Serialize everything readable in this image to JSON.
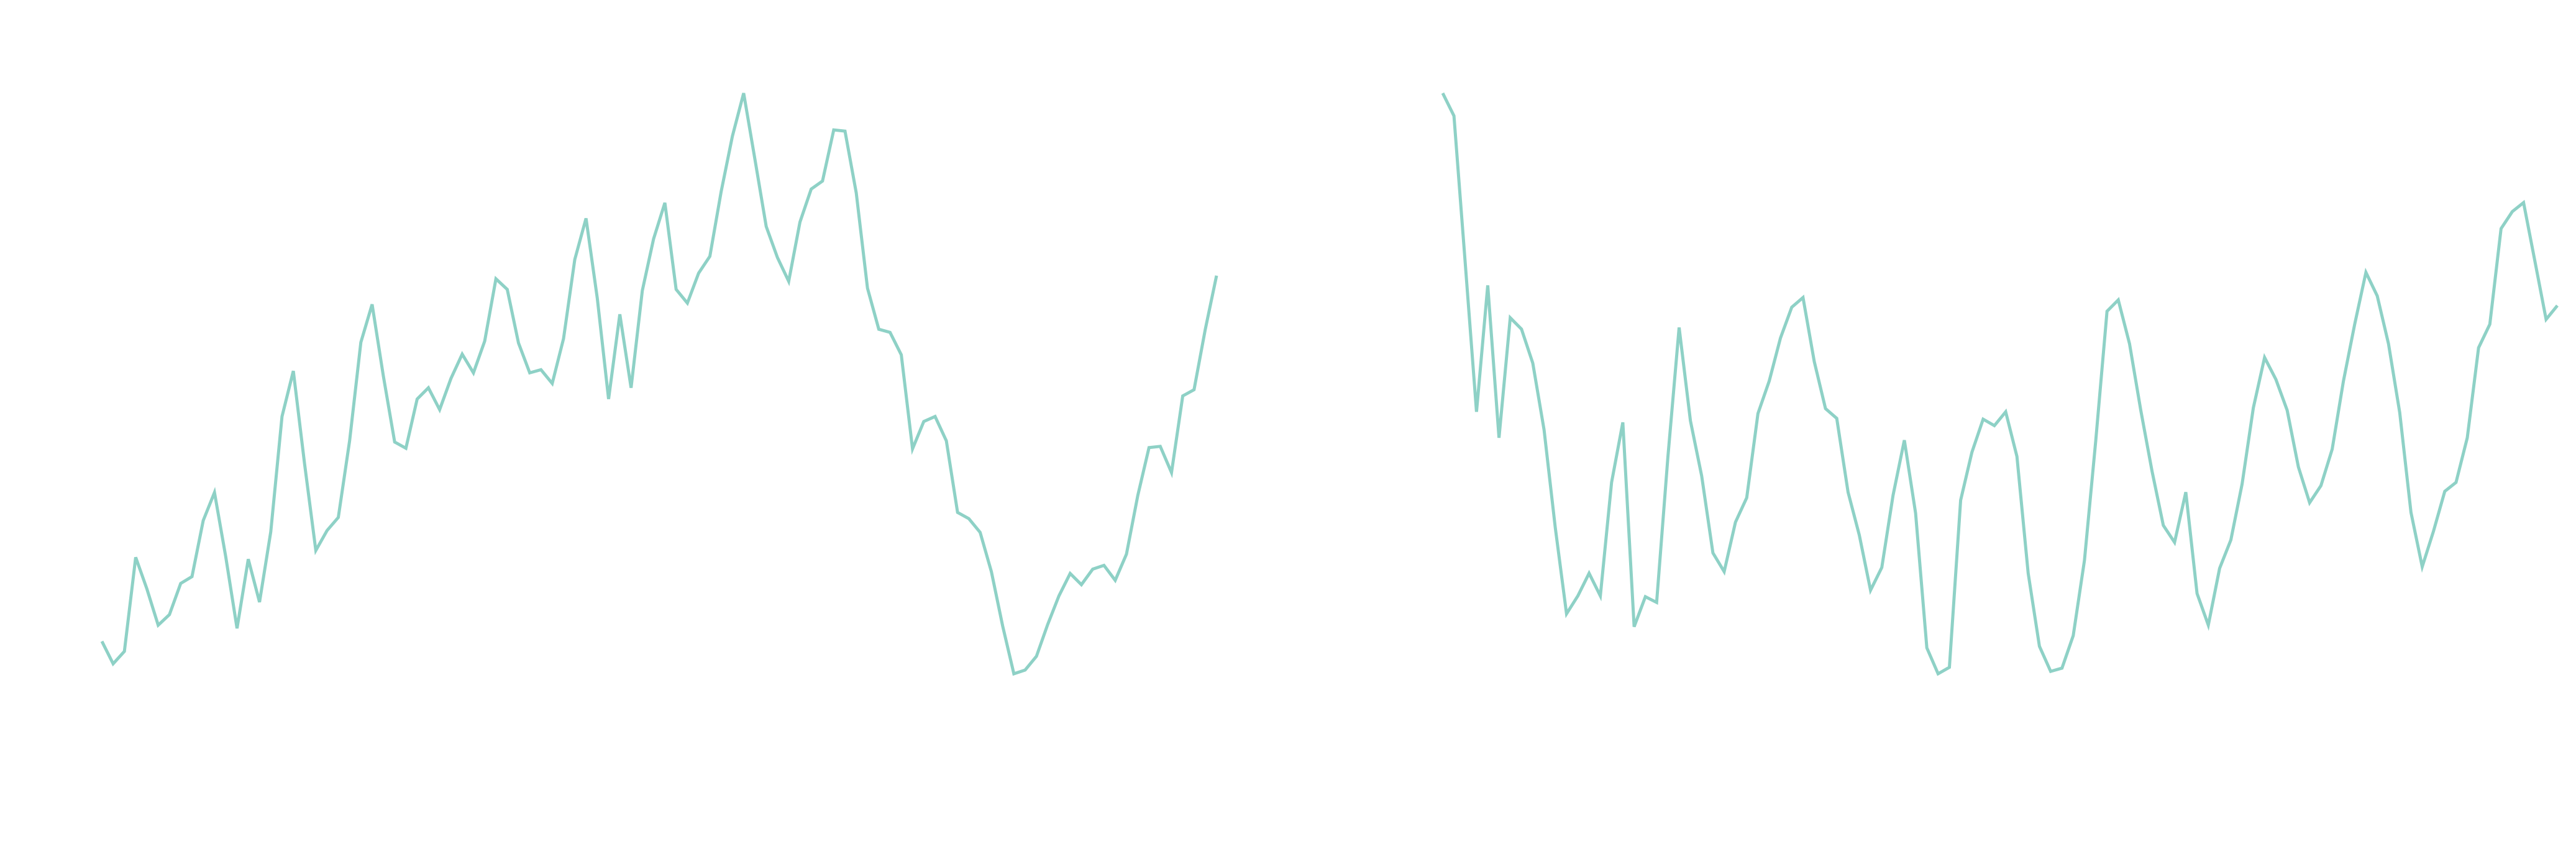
{
  "chart_data": [
    {
      "type": "line",
      "title": "",
      "xlabel": "",
      "ylabel": "",
      "grid": false,
      "axes_visible": false,
      "line_color": "#8ed1c6",
      "x": [
        0,
        1,
        2,
        3,
        4,
        5,
        6,
        7,
        8,
        9,
        10,
        11,
        12,
        13,
        14,
        15,
        16,
        17,
        18,
        19,
        20,
        21,
        22,
        23,
        24,
        25,
        26,
        27,
        28,
        29,
        30,
        31,
        32,
        33,
        34,
        35,
        36,
        37,
        38,
        39,
        40,
        41,
        42,
        43,
        44,
        45,
        46,
        47,
        48,
        49,
        50,
        51,
        52,
        53,
        54,
        55,
        56,
        57,
        58,
        59,
        60,
        61,
        62,
        63,
        64,
        65,
        66,
        67,
        68,
        69,
        70,
        71,
        72,
        73,
        74,
        75,
        76,
        77,
        78,
        79,
        80,
        81,
        82,
        83,
        84,
        85,
        86,
        87,
        88,
        89,
        90,
        91,
        92,
        93,
        94,
        95,
        96,
        97,
        98,
        99
      ],
      "values": [
        0.6,
        0.24,
        0.44,
        1.95,
        1.44,
        0.86,
        1.03,
        1.53,
        1.64,
        2.54,
        2.99,
        1.96,
        0.81,
        1.92,
        1.23,
        2.36,
        4.21,
        4.94,
        3.45,
        2.06,
        2.38,
        2.59,
        3.82,
        5.4,
        6.01,
        4.86,
        3.8,
        3.7,
        4.49,
        4.67,
        4.32,
        4.82,
        5.21,
        4.91,
        5.42,
        6.42,
        6.25,
        5.39,
        4.91,
        4.96,
        4.74,
        5.46,
        6.73,
        7.39,
        6.11,
        4.49,
        5.85,
        4.67,
        6.23,
        7.06,
        7.64,
        6.25,
        6.03,
        6.51,
        6.78,
        7.82,
        8.71,
        9.4,
        8.34,
        7.26,
        6.76,
        6.38,
        7.33,
        7.86,
        7.99,
        8.81,
        8.79,
        7.8,
        6.27,
        5.61,
        5.56,
        5.2,
        3.69,
        4.13,
        4.21,
        3.82,
        2.67,
        2.57,
        2.35,
        1.72,
        0.85,
        0.08,
        0.14,
        0.36,
        0.87,
        1.33,
        1.69,
        1.51,
        1.76,
        1.82,
        1.58,
        2.0,
        2.94,
        3.71,
        3.73,
        3.31,
        4.54,
        4.64,
        5.61,
        6.47
      ]
    },
    {
      "type": "line",
      "title": "",
      "xlabel": "",
      "ylabel": "",
      "grid": false,
      "axes_visible": false,
      "line_color": "#8ed1c6",
      "x": [
        0,
        1,
        2,
        3,
        4,
        5,
        6,
        7,
        8,
        9,
        10,
        11,
        12,
        13,
        14,
        15,
        16,
        17,
        18,
        19,
        20,
        21,
        22,
        23,
        24,
        25,
        26,
        27,
        28,
        29,
        30,
        31,
        32,
        33,
        34,
        35,
        36,
        37,
        38,
        39,
        40,
        41,
        42,
        43,
        44,
        45,
        46,
        47,
        48,
        49,
        50,
        51,
        52,
        53,
        54,
        55,
        56,
        57,
        58,
        59,
        60,
        61,
        62,
        63,
        64,
        65,
        66,
        67,
        68,
        69,
        70,
        71,
        72,
        73,
        74,
        75,
        76,
        77,
        78,
        79,
        80,
        81,
        82,
        83,
        84,
        85,
        86,
        87,
        88,
        89,
        90,
        91,
        92,
        93,
        94,
        95,
        96,
        97,
        98,
        99
      ],
      "values": [
        9.4,
        9.12,
        7.31,
        5.47,
        7.03,
        5.15,
        6.63,
        6.49,
        6.07,
        5.25,
        4.04,
        2.98,
        3.2,
        3.48,
        3.2,
        4.6,
        5.34,
        2.82,
        3.19,
        3.12,
        4.91,
        6.51,
        5.36,
        4.68,
        3.73,
        3.5,
        4.11,
        4.41,
        5.45,
        5.85,
        6.38,
        6.76,
        6.88,
        6.09,
        5.51,
        5.39,
        4.48,
        3.95,
        3.27,
        3.55,
        4.44,
        5.12,
        4.22,
        2.56,
        2.24,
        2.32,
        4.38,
        4.97,
        5.38,
        5.3,
        5.47,
        4.92,
        3.48,
        2.58,
        2.27,
        2.31,
        2.71,
        3.64,
        5.11,
        6.71,
        6.85,
        6.31,
        5.49,
        4.74,
        4.07,
        3.86,
        4.48,
        3.23,
        2.84,
        3.54,
        3.89,
        4.58,
        5.52,
        6.14,
        5.87,
        5.49,
        4.79,
        4.35,
        4.56,
        5.01,
        5.85,
        6.55,
        7.19,
        6.9,
        6.31,
        5.46,
        4.23,
        3.56,
        4.0,
        4.49,
        4.6,
        5.15,
        6.26,
        6.55,
        7.73,
        7.94,
        8.05,
        7.33,
        6.61,
        6.78
      ]
    }
  ]
}
